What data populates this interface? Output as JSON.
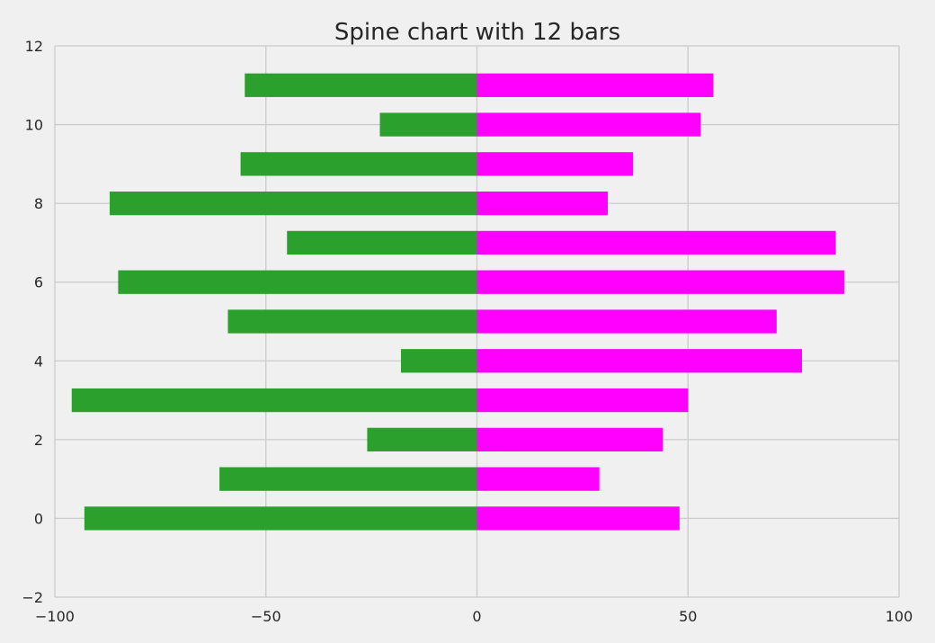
{
  "chart_data": {
    "type": "bar",
    "orientation": "horizontal",
    "title": "Spine chart with 12 bars",
    "xlabel": "",
    "ylabel": "",
    "y": [
      0,
      1,
      2,
      3,
      4,
      5,
      6,
      7,
      8,
      9,
      10,
      11
    ],
    "series": [
      {
        "color": "#2ca02c",
        "values": [
          -93,
          -61,
          -26,
          -96,
          -18,
          -59,
          -85,
          -45,
          -87,
          -56,
          -23,
          -55
        ]
      },
      {
        "color": "#ff00ff",
        "values": [
          48,
          29,
          44,
          50,
          77,
          71,
          87,
          85,
          31,
          37,
          53,
          56
        ]
      }
    ],
    "xlim": [
      -100,
      100
    ],
    "ylim": [
      -2,
      12
    ],
    "xticks": [
      -100,
      -50,
      0,
      50,
      100
    ],
    "xtick_labels": [
      "−100",
      "−50",
      "0",
      "50",
      "100"
    ],
    "yticks": [
      -2,
      0,
      2,
      4,
      6,
      8,
      10,
      12
    ],
    "ytick_labels": [
      "−2",
      "0",
      "2",
      "4",
      "6",
      "8",
      "10",
      "12"
    ],
    "grid": true,
    "legend": "none",
    "background": "#f0f0f0",
    "grid_color": "#cbcbcb"
  }
}
